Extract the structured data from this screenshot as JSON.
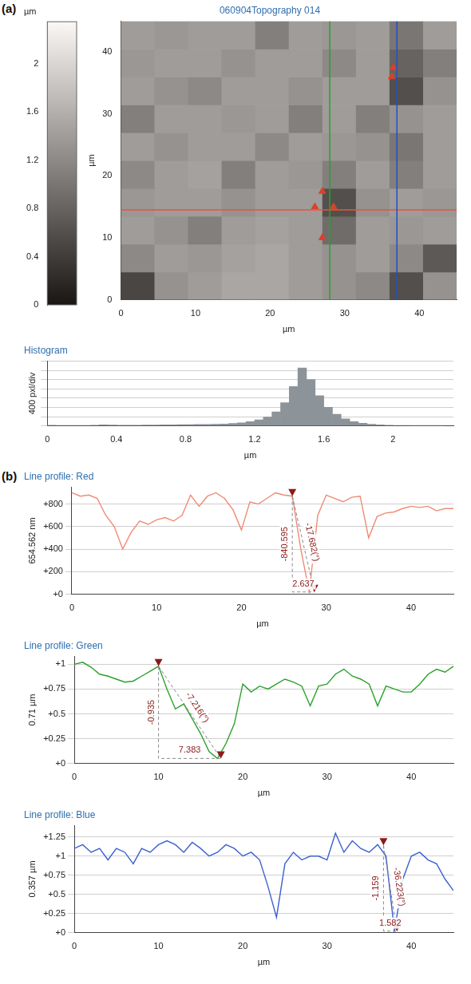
{
  "chart_data": [
    {
      "type": "heatmap",
      "panel": "(a)",
      "title": "060904Topography 014",
      "x_label": "µm",
      "y_label": "µm",
      "xlim": [
        0,
        45
      ],
      "xticks": [
        0,
        10,
        20,
        30,
        40
      ],
      "ylim": [
        0,
        45
      ],
      "yticks": [
        0,
        10,
        20,
        30,
        40
      ],
      "grid": false,
      "cells": [
        [
          0.5,
          1.3,
          1.4,
          1.5,
          1.5,
          1.4,
          1.3,
          1.2,
          0.6,
          1.3
        ],
        [
          1.2,
          1.4,
          1.35,
          1.45,
          1.5,
          1.4,
          1.3,
          1.4,
          1.2,
          0.7
        ],
        [
          1.4,
          1.3,
          1.1,
          1.4,
          1.45,
          1.4,
          0.9,
          1.4,
          1.35,
          1.4
        ],
        [
          1.35,
          1.4,
          1.4,
          1.3,
          1.4,
          1.4,
          0.6,
          1.3,
          1.4,
          1.35
        ],
        [
          1.2,
          1.4,
          1.45,
          1.1,
          1.4,
          1.35,
          1.1,
          1.4,
          1.1,
          1.4
        ],
        [
          1.4,
          1.3,
          1.4,
          1.4,
          1.2,
          1.4,
          1.35,
          1.3,
          1.0,
          1.4
        ],
        [
          1.1,
          1.4,
          1.4,
          1.35,
          1.4,
          1.1,
          1.4,
          1.1,
          1.3,
          1.4
        ],
        [
          1.4,
          1.3,
          1.2,
          1.4,
          1.4,
          1.3,
          1.4,
          1.4,
          0.6,
          1.3
        ],
        [
          1.35,
          1.4,
          1.4,
          1.3,
          1.4,
          1.4,
          1.2,
          1.4,
          0.8,
          1.1
        ],
        [
          1.4,
          1.35,
          1.4,
          1.4,
          1.1,
          1.4,
          1.35,
          1.4,
          1.0,
          1.4
        ]
      ],
      "colorbar": {
        "range": [
          0,
          2.35
        ],
        "ticks": [
          0,
          0.4,
          0.8,
          1.2,
          1.6,
          2
        ],
        "label": "µm"
      },
      "cursor_lines": [
        {
          "color": "#2ca02c",
          "x": 28
        },
        {
          "color": "#1f4fd0",
          "x": 37
        },
        {
          "color": "#e8533f",
          "y": 14.5
        }
      ],
      "markers": {
        "marker": "triangle",
        "color": "#d9412b",
        "x": [
          36.5,
          36.3,
          27.0,
          26.0,
          28.5,
          27.0
        ],
        "y": [
          37.5,
          36.0,
          17.5,
          15.0,
          15.0,
          10.0
        ]
      }
    },
    {
      "type": "histogram",
      "title": "Histogram",
      "x_label": "µm",
      "y_label": "400 pxl/div",
      "color": "#8c949a",
      "bins": [
        0,
        0.05,
        0.1,
        0.15,
        0.2,
        0.25,
        0.3,
        0.35,
        0.4,
        0.45,
        0.5,
        0.55,
        0.6,
        0.65,
        0.7,
        0.75,
        0.8,
        0.85,
        0.9,
        0.95,
        1,
        1.05,
        1.1,
        1.15,
        1.2,
        1.25,
        1.3,
        1.35,
        1.4,
        1.45,
        1.5,
        1.55,
        1.6,
        1.65,
        1.7,
        1.75,
        1.8,
        1.85,
        1.9,
        1.95,
        2,
        2.05,
        2.1,
        2.15,
        2.2,
        2.25,
        2.3
      ],
      "values": [
        30,
        20,
        15,
        15,
        20,
        25,
        40,
        35,
        30,
        30,
        30,
        35,
        35,
        40,
        45,
        50,
        55,
        60,
        65,
        70,
        80,
        100,
        130,
        180,
        260,
        380,
        600,
        1000,
        1700,
        2500,
        2000,
        1300,
        800,
        500,
        300,
        180,
        110,
        70,
        45,
        30,
        20,
        12,
        8,
        5,
        3,
        2
      ],
      "xlim": [
        0,
        2.35
      ],
      "xticks": [
        0,
        0.4,
        0.8,
        1.2,
        1.6,
        2
      ],
      "ylim": [
        0,
        2800
      ],
      "yticks": [
        0,
        400,
        800,
        1200,
        1600,
        2000,
        2400,
        2800
      ],
      "tick_labels": "x",
      "grid": "y"
    },
    {
      "type": "line",
      "panel": "(b)",
      "title": "Line profile: Red",
      "x_label": "µm",
      "y_label": "654.562 nm",
      "grid": "y",
      "x": [
        0,
        1,
        2,
        3,
        4,
        5,
        6,
        7,
        8,
        9,
        10,
        11,
        12,
        13,
        14,
        15,
        16,
        17,
        18,
        19,
        20,
        21,
        22,
        23,
        24,
        25,
        26,
        27,
        28,
        29,
        30,
        31,
        32,
        33,
        34,
        35,
        36,
        37,
        38,
        39,
        40,
        41,
        42,
        43,
        44,
        45
      ],
      "series": [
        {
          "color": "#f08a75",
          "values": [
            900,
            870,
            880,
            850,
            700,
            600,
            400,
            550,
            650,
            620,
            660,
            680,
            650,
            700,
            880,
            780,
            870,
            900,
            850,
            750,
            570,
            820,
            800,
            850,
            900,
            880,
            870,
            400,
            20,
            700,
            880,
            850,
            820,
            860,
            870,
            500,
            690,
            720,
            730,
            760,
            780,
            770,
            780,
            740,
            760,
            760
          ]
        }
      ],
      "xlim": [
        0,
        45
      ],
      "xticks": [
        0,
        10,
        20,
        30,
        40
      ],
      "ylim": [
        0,
        950
      ],
      "yticks": [
        {
          "value": 0,
          "label": "+0"
        },
        {
          "value": 200,
          "label": "+200"
        },
        {
          "value": 400,
          "label": "+400"
        },
        {
          "value": 600,
          "label": "+600"
        },
        {
          "value": 800,
          "label": "+800"
        }
      ],
      "cursors": {
        "marker": "triangle",
        "color": "#8b1a1a",
        "x": [
          26.0,
          28.6
        ],
        "y": [
          870,
          20
        ]
      },
      "measurement": {
        "dy": -840.595,
        "angle": "-17.682(°)",
        "dx": 2.637
      }
    },
    {
      "type": "line",
      "title": "Line profile: Green",
      "x_label": "µm",
      "y_label": "0.71 µm",
      "grid": "y",
      "x": [
        0,
        1,
        2,
        3,
        4,
        5,
        6,
        7,
        8,
        9,
        10,
        11,
        12,
        13,
        14,
        15,
        16,
        17,
        18,
        19,
        20,
        21,
        22,
        23,
        24,
        25,
        26,
        27,
        28,
        29,
        30,
        31,
        32,
        33,
        34,
        35,
        36,
        37,
        38,
        39,
        40,
        41,
        42,
        43,
        44,
        45
      ],
      "series": [
        {
          "color": "#2ca02c",
          "values": [
            1.0,
            1.02,
            0.97,
            0.9,
            0.88,
            0.85,
            0.82,
            0.83,
            0.88,
            0.93,
            0.98,
            0.75,
            0.55,
            0.6,
            0.45,
            0.3,
            0.12,
            0.05,
            0.2,
            0.4,
            0.8,
            0.72,
            0.78,
            0.75,
            0.8,
            0.85,
            0.82,
            0.78,
            0.58,
            0.78,
            0.8,
            0.9,
            0.95,
            0.88,
            0.85,
            0.8,
            0.58,
            0.78,
            0.75,
            0.72,
            0.72,
            0.8,
            0.9,
            0.95,
            0.92,
            0.98
          ]
        }
      ],
      "xlim": [
        0,
        45
      ],
      "xticks": [
        0,
        10,
        20,
        30,
        40
      ],
      "ylim": [
        0,
        1.08
      ],
      "yticks": [
        {
          "value": 0,
          "label": "+0"
        },
        {
          "value": 0.25,
          "label": "+0.25"
        },
        {
          "value": 0.5,
          "label": "+0.5"
        },
        {
          "value": 0.75,
          "label": "+0.75"
        },
        {
          "value": 1,
          "label": "+1"
        }
      ],
      "cursors": {
        "marker": "triangle",
        "color": "#8b1a1a",
        "x": [
          10.0,
          17.4
        ],
        "y": [
          0.98,
          0.05
        ]
      },
      "measurement": {
        "dy": -0.935,
        "angle": "-7.216(°)",
        "dx": 7.383
      }
    },
    {
      "type": "line",
      "title": "Line profile: Blue",
      "x_label": "µm",
      "y_label": "0.357 µm",
      "grid": "y",
      "x": [
        0,
        1,
        2,
        3,
        4,
        5,
        6,
        7,
        8,
        9,
        10,
        11,
        12,
        13,
        14,
        15,
        16,
        17,
        18,
        19,
        20,
        21,
        22,
        23,
        24,
        25,
        26,
        27,
        28,
        29,
        30,
        31,
        32,
        33,
        34,
        35,
        36,
        37,
        38,
        39,
        40,
        41,
        42,
        43,
        44,
        45
      ],
      "series": [
        {
          "color": "#3b5fd0",
          "values": [
            1.1,
            1.15,
            1.05,
            1.1,
            0.95,
            1.1,
            1.05,
            0.9,
            1.1,
            1.05,
            1.15,
            1.2,
            1.15,
            1.05,
            1.18,
            1.1,
            1.0,
            1.05,
            1.15,
            1.1,
            1.0,
            1.05,
            0.95,
            0.6,
            0.2,
            0.9,
            1.05,
            0.95,
            1.0,
            1.0,
            0.95,
            1.3,
            1.05,
            1.2,
            1.1,
            1.05,
            1.15,
            1.0,
            0.02,
            0.7,
            1.0,
            1.05,
            0.95,
            0.9,
            0.7,
            0.55
          ]
        }
      ],
      "xlim": [
        0,
        45
      ],
      "xticks": [
        0,
        10,
        20,
        30,
        40
      ],
      "ylim": [
        0,
        1.4
      ],
      "yticks": [
        {
          "value": 0,
          "label": "+0"
        },
        {
          "value": 0.25,
          "label": "+0.25"
        },
        {
          "value": 0.5,
          "label": "+0.5"
        },
        {
          "value": 0.75,
          "label": "+0.75"
        },
        {
          "value": 1,
          "label": "+1"
        },
        {
          "value": 1.25,
          "label": "+1.25"
        }
      ],
      "cursors": {
        "marker": "triangle",
        "color": "#8b1a1a",
        "x": [
          36.7,
          38.3
        ],
        "y": [
          1.14,
          0.02
        ]
      },
      "measurement": {
        "dy": -1.159,
        "angle": "-36.223(°)",
        "dx": 1.582
      }
    }
  ]
}
